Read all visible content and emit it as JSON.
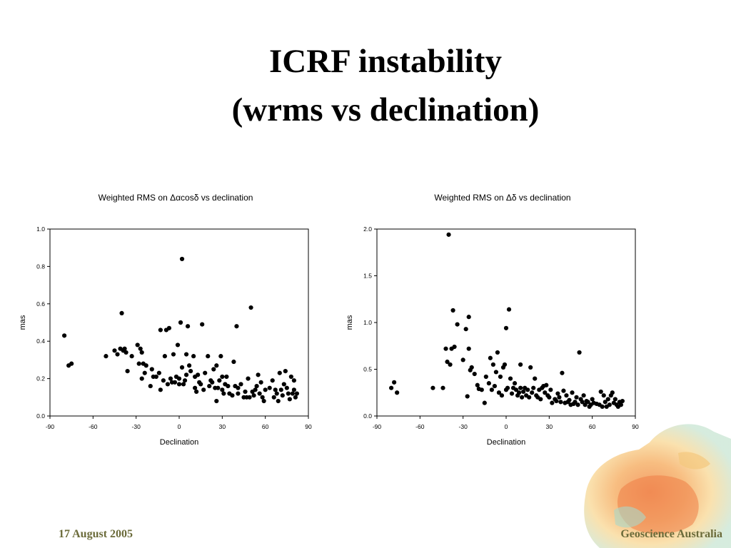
{
  "slide": {
    "title_line1": "ICRF instability",
    "title_line2": "(wrms vs declination)",
    "footer_date": "17 August 2005",
    "footer_brand": "Geoscience Australia"
  },
  "chart_data": [
    {
      "type": "scatter",
      "title": "Weighted RMS on Δαcosδ vs declination",
      "xlabel": "Declination",
      "ylabel": "mas",
      "xlim": [
        -90,
        90
      ],
      "ylim": [
        0,
        1.0
      ],
      "xticks": [
        -90,
        -60,
        -30,
        0,
        30,
        60,
        90
      ],
      "xtick_labels": [
        "-90",
        "-60",
        "-30",
        "0",
        "30",
        "60",
        "90"
      ],
      "yticks": [
        0,
        0.2,
        0.4,
        0.6,
        0.8,
        1.0
      ],
      "ytick_labels": [
        "0.0",
        "0.2",
        "0.4",
        "0.6",
        "0.8",
        "1.0"
      ],
      "grid": false,
      "marker_color": "#000000",
      "points": [
        [
          -80,
          0.43
        ],
        [
          -77,
          0.27
        ],
        [
          -75,
          0.28
        ],
        [
          -51,
          0.32
        ],
        [
          -45,
          0.35
        ],
        [
          -43,
          0.33
        ],
        [
          -41,
          0.36
        ],
        [
          -40,
          0.55
        ],
        [
          -39,
          0.35
        ],
        [
          -38,
          0.36
        ],
        [
          -37,
          0.34
        ],
        [
          -36,
          0.24
        ],
        [
          -33,
          0.32
        ],
        [
          -29,
          0.38
        ],
        [
          -28,
          0.28
        ],
        [
          -27,
          0.36
        ],
        [
          -26,
          0.34
        ],
        [
          -26,
          0.2
        ],
        [
          -25,
          0.28
        ],
        [
          -24,
          0.23
        ],
        [
          -23,
          0.27
        ],
        [
          -20,
          0.16
        ],
        [
          -19,
          0.25
        ],
        [
          -18,
          0.21
        ],
        [
          -16,
          0.21
        ],
        [
          -14,
          0.23
        ],
        [
          -13,
          0.46
        ],
        [
          -13,
          0.14
        ],
        [
          -11,
          0.19
        ],
        [
          -10,
          0.32
        ],
        [
          -9,
          0.46
        ],
        [
          -8,
          0.17
        ],
        [
          -7,
          0.47
        ],
        [
          -6,
          0.2
        ],
        [
          -5,
          0.18
        ],
        [
          -4,
          0.33
        ],
        [
          -3,
          0.18
        ],
        [
          -2,
          0.21
        ],
        [
          -1,
          0.38
        ],
        [
          0,
          0.17
        ],
        [
          0,
          0.2
        ],
        [
          1,
          0.5
        ],
        [
          2,
          0.84
        ],
        [
          2,
          0.26
        ],
        [
          3,
          0.17
        ],
        [
          4,
          0.19
        ],
        [
          5,
          0.22
        ],
        [
          5,
          0.33
        ],
        [
          6,
          0.48
        ],
        [
          7,
          0.27
        ],
        [
          8,
          0.24
        ],
        [
          10,
          0.32
        ],
        [
          11,
          0.15
        ],
        [
          11,
          0.21
        ],
        [
          12,
          0.13
        ],
        [
          13,
          0.22
        ],
        [
          14,
          0.18
        ],
        [
          15,
          0.17
        ],
        [
          16,
          0.49
        ],
        [
          17,
          0.14
        ],
        [
          18,
          0.23
        ],
        [
          20,
          0.32
        ],
        [
          21,
          0.16
        ],
        [
          22,
          0.19
        ],
        [
          23,
          0.18
        ],
        [
          24,
          0.25
        ],
        [
          25,
          0.15
        ],
        [
          26,
          0.27
        ],
        [
          26,
          0.08
        ],
        [
          27,
          0.15
        ],
        [
          28,
          0.19
        ],
        [
          29,
          0.32
        ],
        [
          30,
          0.21
        ],
        [
          30,
          0.14
        ],
        [
          31,
          0.12
        ],
        [
          32,
          0.17
        ],
        [
          33,
          0.21
        ],
        [
          34,
          0.16
        ],
        [
          35,
          0.12
        ],
        [
          37,
          0.11
        ],
        [
          38,
          0.29
        ],
        [
          39,
          0.16
        ],
        [
          40,
          0.48
        ],
        [
          41,
          0.12
        ],
        [
          41,
          0.15
        ],
        [
          43,
          0.17
        ],
        [
          45,
          0.1
        ],
        [
          46,
          0.13
        ],
        [
          47,
          0.1
        ],
        [
          48,
          0.2
        ],
        [
          49,
          0.1
        ],
        [
          50,
          0.58
        ],
        [
          51,
          0.13
        ],
        [
          52,
          0.11
        ],
        [
          53,
          0.14
        ],
        [
          54,
          0.16
        ],
        [
          55,
          0.22
        ],
        [
          56,
          0.12
        ],
        [
          57,
          0.18
        ],
        [
          58,
          0.1
        ],
        [
          59,
          0.08
        ],
        [
          60,
          0.14
        ],
        [
          63,
          0.15
        ],
        [
          65,
          0.19
        ],
        [
          66,
          0.1
        ],
        [
          67,
          0.14
        ],
        [
          68,
          0.12
        ],
        [
          69,
          0.08
        ],
        [
          70,
          0.23
        ],
        [
          71,
          0.14
        ],
        [
          72,
          0.11
        ],
        [
          73,
          0.17
        ],
        [
          74,
          0.24
        ],
        [
          75,
          0.15
        ],
        [
          76,
          0.12
        ],
        [
          77,
          0.09
        ],
        [
          78,
          0.21
        ],
        [
          79,
          0.12
        ],
        [
          80,
          0.14
        ],
        [
          80,
          0.19
        ],
        [
          81,
          0.1
        ],
        [
          82,
          0.12
        ]
      ]
    },
    {
      "type": "scatter",
      "title": "Weighted RMS on Δδ vs declination",
      "xlabel": "Declination",
      "ylabel": "mas",
      "xlim": [
        -90,
        90
      ],
      "ylim": [
        0,
        2.0
      ],
      "xticks": [
        -90,
        -60,
        -30,
        0,
        30,
        60,
        90
      ],
      "xtick_labels": [
        "-90",
        "-60",
        "-30",
        "0",
        "30",
        "60",
        "90"
      ],
      "yticks": [
        0,
        0.5,
        1.0,
        1.5,
        2.0
      ],
      "ytick_labels": [
        "0.0",
        "0.5",
        "1.0",
        "1.5",
        "2.0"
      ],
      "grid": false,
      "marker_color": "#000000",
      "points": [
        [
          -80,
          0.3
        ],
        [
          -78,
          0.36
        ],
        [
          -76,
          0.25
        ],
        [
          -51,
          0.3
        ],
        [
          -44,
          0.3
        ],
        [
          -42,
          0.72
        ],
        [
          -41,
          0.58
        ],
        [
          -40,
          1.94
        ],
        [
          -39,
          0.55
        ],
        [
          -38,
          0.72
        ],
        [
          -37,
          1.13
        ],
        [
          -36,
          0.74
        ],
        [
          -34,
          0.98
        ],
        [
          -30,
          0.6
        ],
        [
          -28,
          0.93
        ],
        [
          -27,
          0.21
        ],
        [
          -26,
          0.72
        ],
        [
          -26,
          1.06
        ],
        [
          -25,
          0.49
        ],
        [
          -24,
          0.52
        ],
        [
          -22,
          0.45
        ],
        [
          -20,
          0.33
        ],
        [
          -19,
          0.29
        ],
        [
          -17,
          0.28
        ],
        [
          -15,
          0.14
        ],
        [
          -14,
          0.42
        ],
        [
          -12,
          0.35
        ],
        [
          -11,
          0.62
        ],
        [
          -10,
          0.28
        ],
        [
          -9,
          0.55
        ],
        [
          -8,
          0.32
        ],
        [
          -7,
          0.47
        ],
        [
          -6,
          0.68
        ],
        [
          -5,
          0.25
        ],
        [
          -4,
          0.42
        ],
        [
          -3,
          0.22
        ],
        [
          -2,
          0.52
        ],
        [
          -1,
          0.55
        ],
        [
          0,
          0.28
        ],
        [
          0,
          0.94
        ],
        [
          1,
          0.3
        ],
        [
          2,
          1.14
        ],
        [
          3,
          0.4
        ],
        [
          4,
          0.24
        ],
        [
          5,
          0.3
        ],
        [
          6,
          0.35
        ],
        [
          7,
          0.28
        ],
        [
          8,
          0.22
        ],
        [
          9,
          0.25
        ],
        [
          10,
          0.55
        ],
        [
          10,
          0.3
        ],
        [
          11,
          0.2
        ],
        [
          12,
          0.26
        ],
        [
          13,
          0.3
        ],
        [
          14,
          0.22
        ],
        [
          15,
          0.28
        ],
        [
          16,
          0.2
        ],
        [
          17,
          0.52
        ],
        [
          18,
          0.25
        ],
        [
          19,
          0.3
        ],
        [
          20,
          0.4
        ],
        [
          21,
          0.22
        ],
        [
          22,
          0.2
        ],
        [
          23,
          0.28
        ],
        [
          24,
          0.18
        ],
        [
          25,
          0.3
        ],
        [
          26,
          0.32
        ],
        [
          27,
          0.25
        ],
        [
          28,
          0.33
        ],
        [
          29,
          0.22
        ],
        [
          30,
          0.2
        ],
        [
          31,
          0.28
        ],
        [
          32,
          0.14
        ],
        [
          34,
          0.18
        ],
        [
          35,
          0.16
        ],
        [
          36,
          0.24
        ],
        [
          37,
          0.2
        ],
        [
          38,
          0.15
        ],
        [
          39,
          0.46
        ],
        [
          40,
          0.27
        ],
        [
          41,
          0.14
        ],
        [
          42,
          0.22
        ],
        [
          43,
          0.15
        ],
        [
          44,
          0.17
        ],
        [
          45,
          0.12
        ],
        [
          46,
          0.25
        ],
        [
          47,
          0.13
        ],
        [
          48,
          0.15
        ],
        [
          49,
          0.2
        ],
        [
          50,
          0.12
        ],
        [
          51,
          0.68
        ],
        [
          52,
          0.18
        ],
        [
          53,
          0.15
        ],
        [
          54,
          0.22
        ],
        [
          55,
          0.12
        ],
        [
          56,
          0.16
        ],
        [
          57,
          0.15
        ],
        [
          58,
          0.1
        ],
        [
          59,
          0.12
        ],
        [
          60,
          0.18
        ],
        [
          61,
          0.14
        ],
        [
          63,
          0.13
        ],
        [
          65,
          0.12
        ],
        [
          66,
          0.26
        ],
        [
          67,
          0.1
        ],
        [
          68,
          0.22
        ],
        [
          69,
          0.15
        ],
        [
          70,
          0.1
        ],
        [
          71,
          0.18
        ],
        [
          72,
          0.12
        ],
        [
          73,
          0.22
        ],
        [
          74,
          0.25
        ],
        [
          75,
          0.14
        ],
        [
          76,
          0.18
        ],
        [
          77,
          0.12
        ],
        [
          78,
          0.1
        ],
        [
          79,
          0.15
        ],
        [
          80,
          0.12
        ],
        [
          81,
          0.16
        ]
      ]
    }
  ]
}
